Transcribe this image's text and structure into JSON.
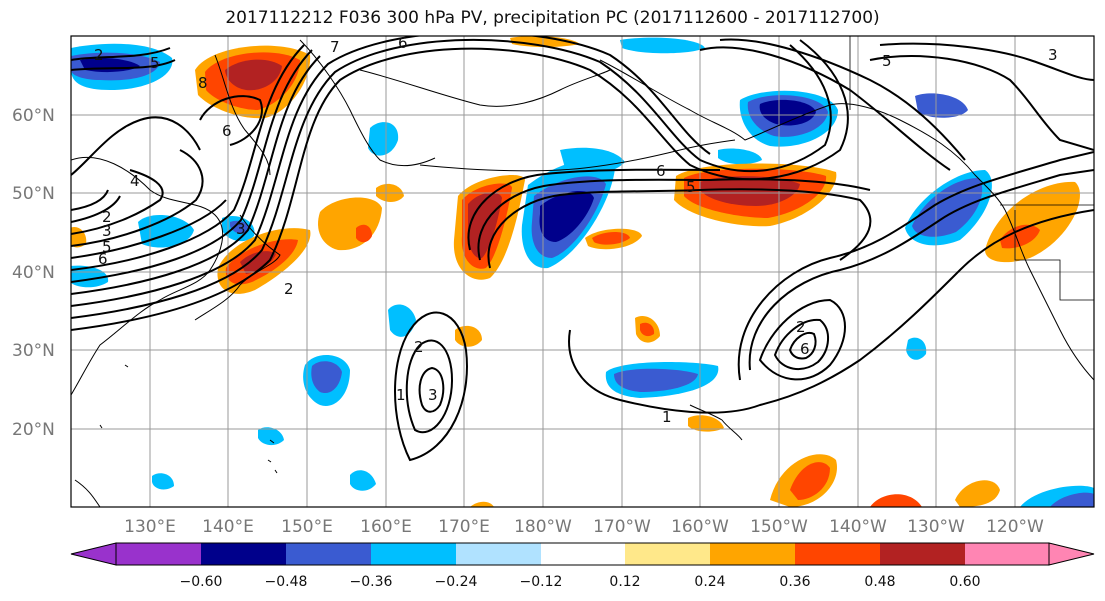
{
  "title": "2017112212 F036 300 hPa PV, precipitation PC (2017112600 - 2017112700)",
  "map": {
    "projection": "cylindrical",
    "lon_range": [
      122,
      252
    ],
    "lat_range": [
      10,
      70
    ],
    "lat_labels": [
      "60°N",
      "50°N",
      "40°N",
      "30°N",
      "20°N"
    ],
    "lat_values": [
      60,
      50,
      40,
      30,
      20
    ],
    "lon_labels": [
      "130°E",
      "140°E",
      "150°E",
      "160°E",
      "170°E",
      "180°W",
      "170°W",
      "160°W",
      "150°W",
      "140°W",
      "130°W",
      "120°W"
    ],
    "lon_values": [
      130,
      140,
      150,
      160,
      170,
      180,
      190,
      200,
      210,
      220,
      230,
      240
    ],
    "grid": true,
    "contour_labels": [
      "2",
      "5",
      "8",
      "7",
      "6",
      "5",
      "3",
      "3",
      "5",
      "6",
      "4",
      "2",
      "6",
      "3",
      "2",
      "6",
      "1",
      "2",
      "3",
      "1",
      "2",
      "6",
      "5"
    ]
  },
  "colorbar": {
    "ticks": [
      "−0.60",
      "−0.48",
      "−0.36",
      "−0.24",
      "−0.12",
      "0.12",
      "0.24",
      "0.36",
      "0.48",
      "0.60"
    ],
    "colors": [
      "#9932cc",
      "#00008b",
      "#3a5bd1",
      "#00bfff",
      "#b0e2ff",
      "#ffffff",
      "#ffe88a",
      "#ffa500",
      "#ff4500",
      "#b22222",
      "#ff85b3"
    ],
    "extend": "both"
  }
}
